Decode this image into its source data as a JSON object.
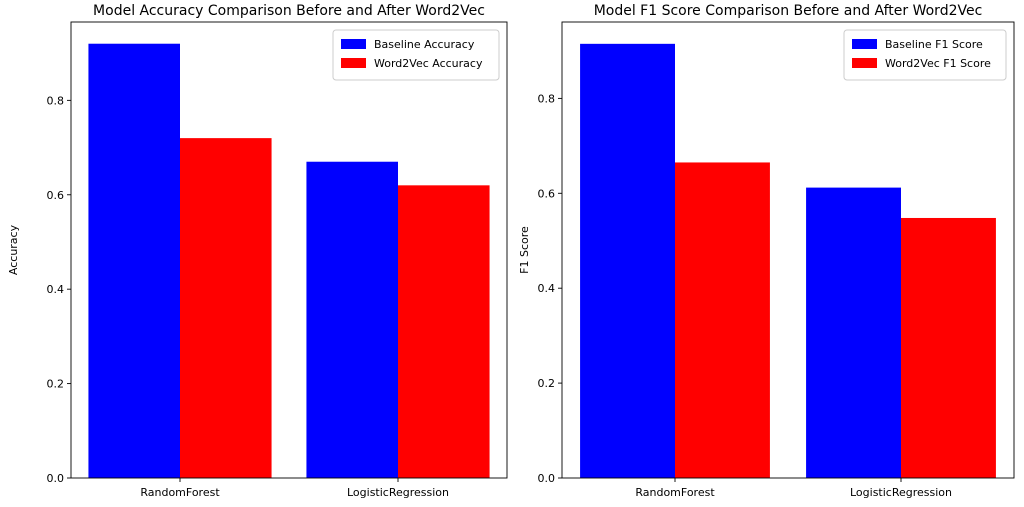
{
  "chart_data": [
    {
      "type": "bar",
      "title": "Model Accuracy Comparison Before and After Word2Vec",
      "xlabel": "",
      "ylabel": "Accuracy",
      "categories": [
        "RandomForest",
        "LogisticRegression"
      ],
      "series": [
        {
          "name": "Baseline Accuracy",
          "color": "#0000ff",
          "values": [
            0.92,
            0.67
          ]
        },
        {
          "name": "Word2Vec Accuracy",
          "color": "#ff0000",
          "values": [
            0.72,
            0.62
          ]
        }
      ],
      "ylim": [
        0,
        0.966
      ],
      "yticks": [
        "0.0",
        "0.2",
        "0.4",
        "0.6",
        "0.8"
      ],
      "legend": "top-right",
      "grid": false
    },
    {
      "type": "bar",
      "title": "Model F1 Score Comparison Before and After Word2Vec",
      "xlabel": "",
      "ylabel": "F1 Score",
      "categories": [
        "RandomForest",
        "LogisticRegression"
      ],
      "series": [
        {
          "name": "Baseline F1 Score",
          "color": "#0000ff",
          "values": [
            0.915,
            0.612
          ]
        },
        {
          "name": "Word2Vec F1 Score",
          "color": "#ff0000",
          "values": [
            0.665,
            0.548
          ]
        }
      ],
      "ylim": [
        0,
        0.961
      ],
      "yticks": [
        "0.0",
        "0.2",
        "0.4",
        "0.6",
        "0.8"
      ],
      "legend": "top-right",
      "grid": false
    }
  ]
}
